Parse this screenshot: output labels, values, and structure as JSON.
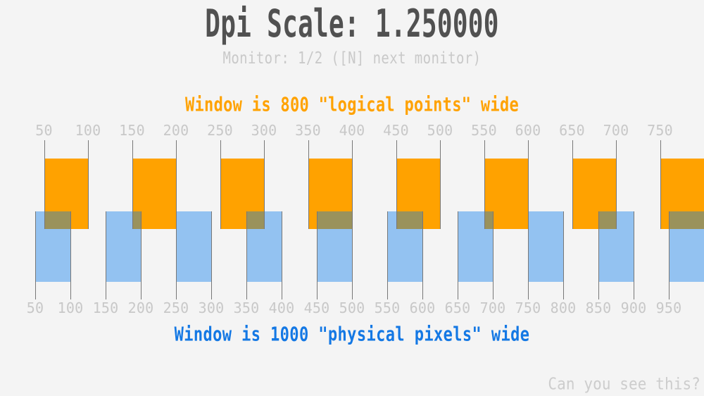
{
  "title": "Dpi Scale: 1.250000",
  "subtitle": "Monitor: 1/2 ([N] next monitor)",
  "headings": {
    "logical": "Window is 800 \"logical points\" wide",
    "physical": "Window is 1000 \"physical pixels\" wide"
  },
  "footer": "Can you see this?",
  "colors": {
    "bg": "#f4f4f4",
    "ink": "#515151",
    "muted": "#c9c9c9",
    "ruler_label": "#c8c8c8",
    "tick": "#777777",
    "orange": "#ffa200",
    "blue_bar": "#93c2f1",
    "overlap": "#9a925c",
    "blue_text": "#1478e4",
    "footer": "#cdcdcd"
  },
  "chart_data": {
    "type": "ruler-comparison",
    "dpi_scale": 1.25,
    "top_ruler": {
      "unit": "logical points",
      "scale_factor": 1.25,
      "tick_values": [
        50,
        100,
        150,
        200,
        250,
        300,
        350,
        400,
        450,
        500,
        550,
        600,
        650,
        700,
        750
      ],
      "bar_ranges": [
        [
          50,
          100
        ],
        [
          150,
          200
        ],
        [
          250,
          300
        ],
        [
          350,
          400
        ],
        [
          450,
          500
        ],
        [
          550,
          600
        ],
        [
          650,
          700
        ],
        [
          750,
          800
        ]
      ]
    },
    "bottom_ruler": {
      "unit": "physical pixels",
      "tick_values": [
        50,
        100,
        150,
        200,
        250,
        300,
        350,
        400,
        450,
        500,
        550,
        600,
        650,
        700,
        750,
        800,
        850,
        900,
        950
      ],
      "bar_ranges": [
        [
          50,
          100
        ],
        [
          150,
          200
        ],
        [
          250,
          300
        ],
        [
          350,
          400
        ],
        [
          450,
          500
        ],
        [
          550,
          600
        ],
        [
          650,
          700
        ],
        [
          750,
          800
        ],
        [
          850,
          900
        ],
        [
          950,
          1000
        ]
      ]
    }
  }
}
